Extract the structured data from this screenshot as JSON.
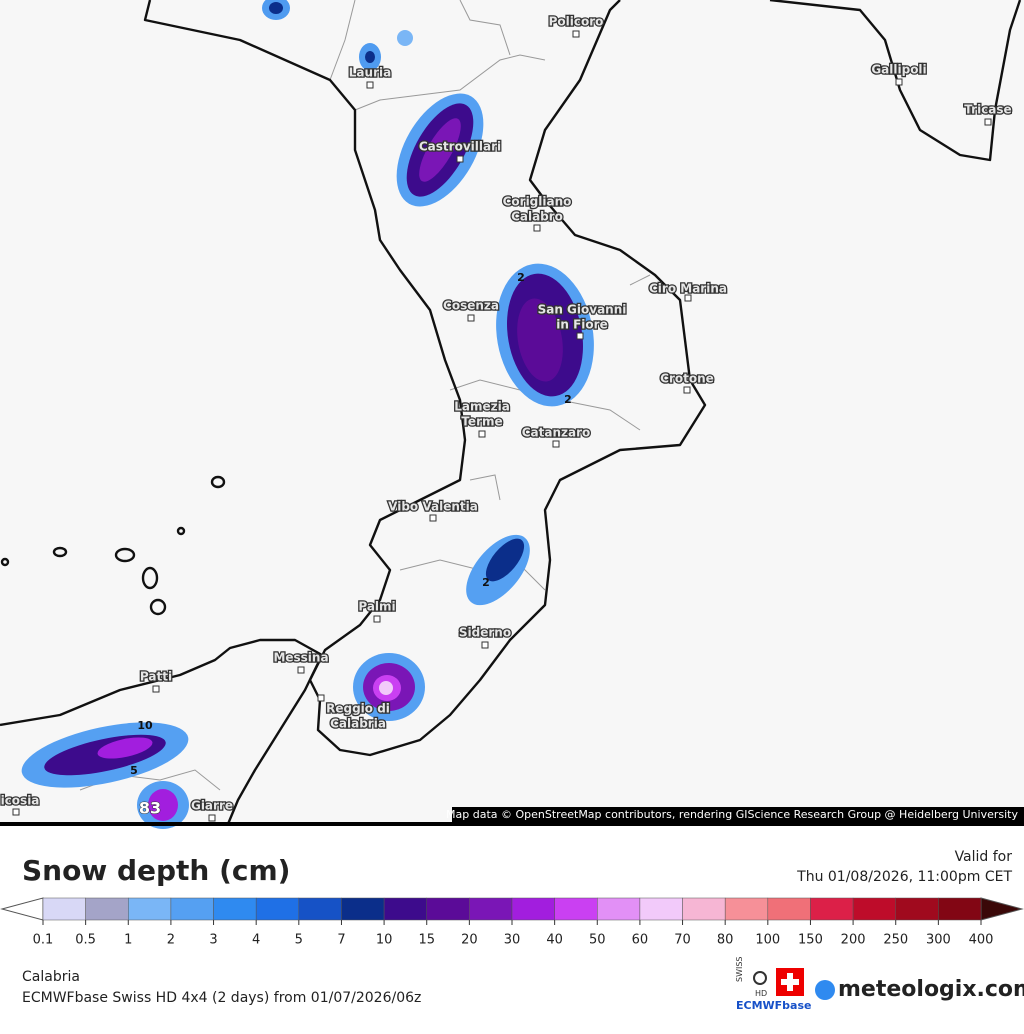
{
  "map": {
    "places": [
      {
        "lines": [
          "Policoro"
        ]
      },
      {
        "lines": [
          "Lauria"
        ]
      },
      {
        "lines": [
          "Gallipoli"
        ]
      },
      {
        "lines": [
          "Tricase"
        ]
      },
      {
        "lines": [
          "Castrovillari"
        ]
      },
      {
        "lines": [
          "Corigliano",
          "Calabro"
        ]
      },
      {
        "lines": [
          "Ciro Marina"
        ]
      },
      {
        "lines": [
          "Cosenza"
        ]
      },
      {
        "lines": [
          "San Giovanni",
          "in Fiore"
        ]
      },
      {
        "lines": [
          "Crotone"
        ]
      },
      {
        "lines": [
          "Lamezia",
          "Terme"
        ]
      },
      {
        "lines": [
          "Catanzaro"
        ]
      },
      {
        "lines": [
          "Vibo Valentia"
        ]
      },
      {
        "lines": [
          "Palmi"
        ]
      },
      {
        "lines": [
          "Siderno"
        ]
      },
      {
        "lines": [
          "Messina"
        ]
      },
      {
        "lines": [
          "Patti"
        ]
      },
      {
        "lines": [
          "Reggio di",
          "Calabria"
        ]
      },
      {
        "lines": [
          "Giarre"
        ]
      },
      {
        "lines": [
          "icosia"
        ]
      }
    ],
    "contour_labels": [
      "2",
      "2",
      "2",
      "10",
      "5",
      "83"
    ],
    "attribution": "Map data © OpenStreetMap contributors, rendering GIScience Research Group @ Heidelberg University"
  },
  "legend": {
    "title": "Snow depth (cm)",
    "valid_label": "Valid for",
    "valid_time": "Thu 01/08/2026, 11:00pm CET",
    "ticks": [
      0.1,
      0.5,
      1,
      2,
      3,
      4,
      5,
      7,
      10,
      15,
      20,
      30,
      40,
      50,
      60,
      70,
      80,
      100,
      150,
      200,
      250,
      300,
      400
    ],
    "colors": [
      "#d8d8f6",
      "#a4a4c8",
      "#7ab6f6",
      "#55a0f2",
      "#2f8af0",
      "#1f70e6",
      "#1652c6",
      "#0b2e8a",
      "#3d0b8c",
      "#5b0b98",
      "#7a16b6",
      "#a21ede",
      "#ca40f2",
      "#e290f6",
      "#f2cafa",
      "#f6b6d4",
      "#f69098",
      "#f07078",
      "#dc2048",
      "#be0c2a",
      "#a00a1e",
      "#820614"
    ],
    "under_color": "#ffffff",
    "over_color": "#3a0808"
  },
  "footer": {
    "region": "Calabria",
    "model": "ECMWFbase Swiss HD 4x4 (2 days) from  01/07/2026/06z",
    "logo_swiss": "SWISS",
    "logo_hd": "HD",
    "logo_base": "ECMWFbase",
    "brand": "meteologix.com"
  }
}
